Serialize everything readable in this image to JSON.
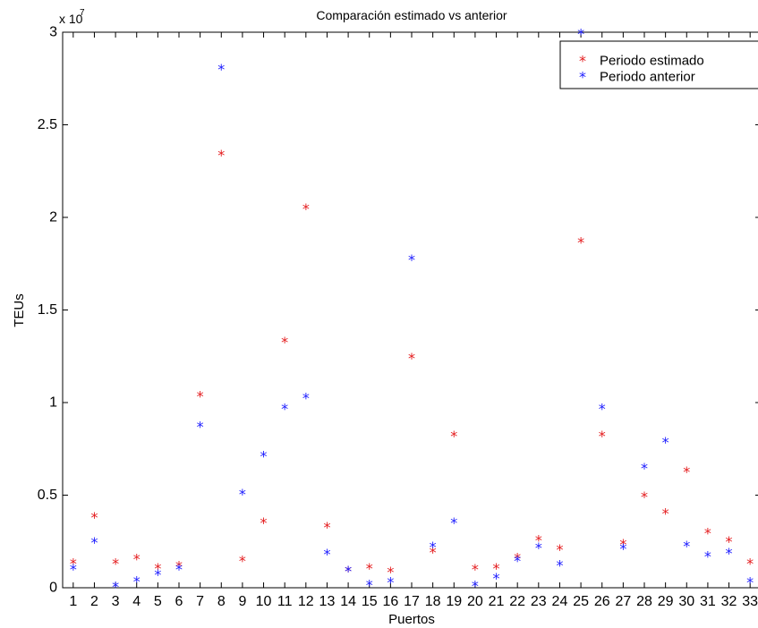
{
  "chart_data": {
    "type": "scatter",
    "title": "Comparación estimado vs anterior",
    "xlabel": "Puertos",
    "ylabel": "TEUs",
    "y_multiplier_base": "x 10",
    "y_multiplier_exp": "7",
    "xlim": [
      0.5,
      33.5
    ],
    "ylim": [
      0,
      3
    ],
    "x_ticks": [
      "1",
      "2",
      "3",
      "4",
      "5",
      "6",
      "7",
      "8",
      "9",
      "10",
      "11",
      "12",
      "13",
      "14",
      "15",
      "16",
      "17",
      "18",
      "19",
      "20",
      "21",
      "22",
      "23",
      "24",
      "25",
      "26",
      "27",
      "28",
      "29",
      "30",
      "31",
      "32",
      "33"
    ],
    "y_ticks": [
      "0",
      "0.5",
      "1",
      "1.5",
      "2",
      "2.5",
      "3"
    ],
    "grid": false,
    "legend_position": "top-right",
    "marker_glyph": "*",
    "series": [
      {
        "name": "Periodo estimado",
        "color": "#e41a1c",
        "x": [
          1,
          2,
          3,
          4,
          5,
          6,
          7,
          8,
          9,
          10,
          11,
          12,
          13,
          14,
          15,
          16,
          17,
          18,
          19,
          20,
          21,
          22,
          23,
          24,
          25,
          26,
          27,
          28,
          29,
          30,
          31,
          32,
          33
        ],
        "values": [
          0.13,
          0.38,
          0.13,
          0.155,
          0.105,
          0.115,
          1.035,
          2.335,
          0.145,
          0.35,
          1.325,
          2.045,
          0.325,
          0.09,
          0.105,
          0.085,
          1.24,
          0.19,
          0.82,
          0.1,
          0.105,
          0.16,
          0.255,
          0.205,
          1.865,
          0.82,
          0.235,
          0.49,
          0.4,
          0.625,
          0.295,
          0.25,
          0.13
        ]
      },
      {
        "name": "Periodo anterior",
        "color": "#1a1aff",
        "x": [
          1,
          2,
          3,
          4,
          5,
          6,
          7,
          8,
          9,
          10,
          11,
          12,
          13,
          14,
          15,
          16,
          17,
          18,
          19,
          20,
          21,
          22,
          23,
          24,
          25,
          26,
          27,
          28,
          29,
          30,
          31,
          32,
          33
        ],
        "values": [
          0.1,
          0.245,
          0.005,
          0.035,
          0.07,
          0.1,
          0.87,
          2.8,
          0.505,
          0.71,
          0.965,
          1.025,
          0.18,
          0.09,
          0.015,
          0.03,
          1.77,
          0.22,
          0.35,
          0.01,
          0.05,
          0.145,
          0.215,
          0.12,
          2.99,
          0.965,
          0.21,
          0.645,
          0.785,
          0.225,
          0.17,
          0.185,
          0.03
        ]
      }
    ]
  }
}
